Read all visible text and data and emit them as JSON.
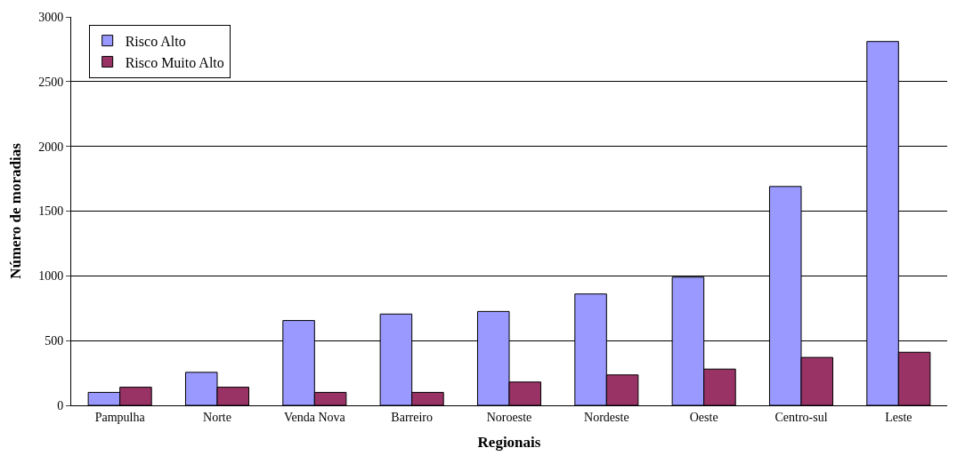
{
  "chart_data": {
    "type": "bar",
    "xlabel": "Regionais",
    "ylabel": "Número de moradias",
    "categories": [
      "Pampulha",
      "Norte",
      "Venda Nova",
      "Barreiro",
      "Noroeste",
      "Nordeste",
      "Oeste",
      "Centro-sul",
      "Leste"
    ],
    "series": [
      {
        "name": "Risco Alto",
        "color": "#9999ff",
        "values": [
          100,
          255,
          655,
          705,
          725,
          860,
          990,
          1690,
          2810
        ]
      },
      {
        "name": "Risco Muito Alto",
        "color": "#993366",
        "values": [
          140,
          140,
          100,
          100,
          180,
          235,
          280,
          370,
          410
        ]
      }
    ],
    "ylim": [
      0,
      3000
    ],
    "yticks": [
      0,
      500,
      1000,
      1500,
      2000,
      2500,
      3000
    ],
    "grid": "y",
    "legend": "top left"
  }
}
